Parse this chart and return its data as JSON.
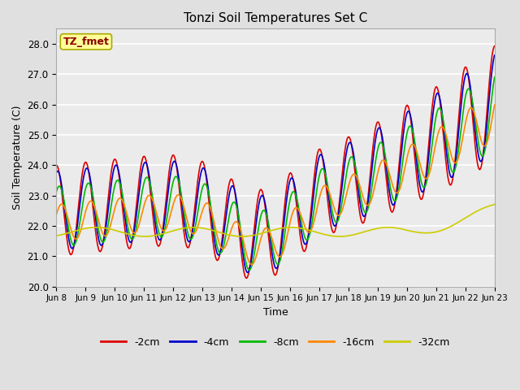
{
  "title": "Tonzi Soil Temperatures Set C",
  "xlabel": "Time",
  "ylabel": "Soil Temperature (C)",
  "ylim": [
    20.0,
    28.5
  ],
  "yticks": [
    20.0,
    21.0,
    22.0,
    23.0,
    24.0,
    25.0,
    26.0,
    27.0,
    28.0
  ],
  "xtick_labels": [
    "Jun 8",
    "Jun 9",
    "Jun 10",
    "Jun 11",
    "Jun 12",
    "Jun 13",
    "Jun 14",
    "Jun 15",
    "Jun 16",
    "Jun 17",
    "Jun 18",
    "Jun 19",
    "Jun 20",
    "Jun 21",
    "Jun 22",
    "Jun 23"
  ],
  "annotation_text": "TZ_fmet",
  "annotation_color": "#8B0000",
  "annotation_bg": "#FFFF99",
  "series_colors": [
    "#DD0000",
    "#0000CC",
    "#00BB00",
    "#FF8800",
    "#CCCC00"
  ],
  "series_labels": [
    "-2cm",
    "-4cm",
    "-8cm",
    "-16cm",
    "-32cm"
  ],
  "line_width": 1.2,
  "background_color": "#E0E0E0",
  "plot_bg_color": "#EBEBEB",
  "n_points": 720
}
